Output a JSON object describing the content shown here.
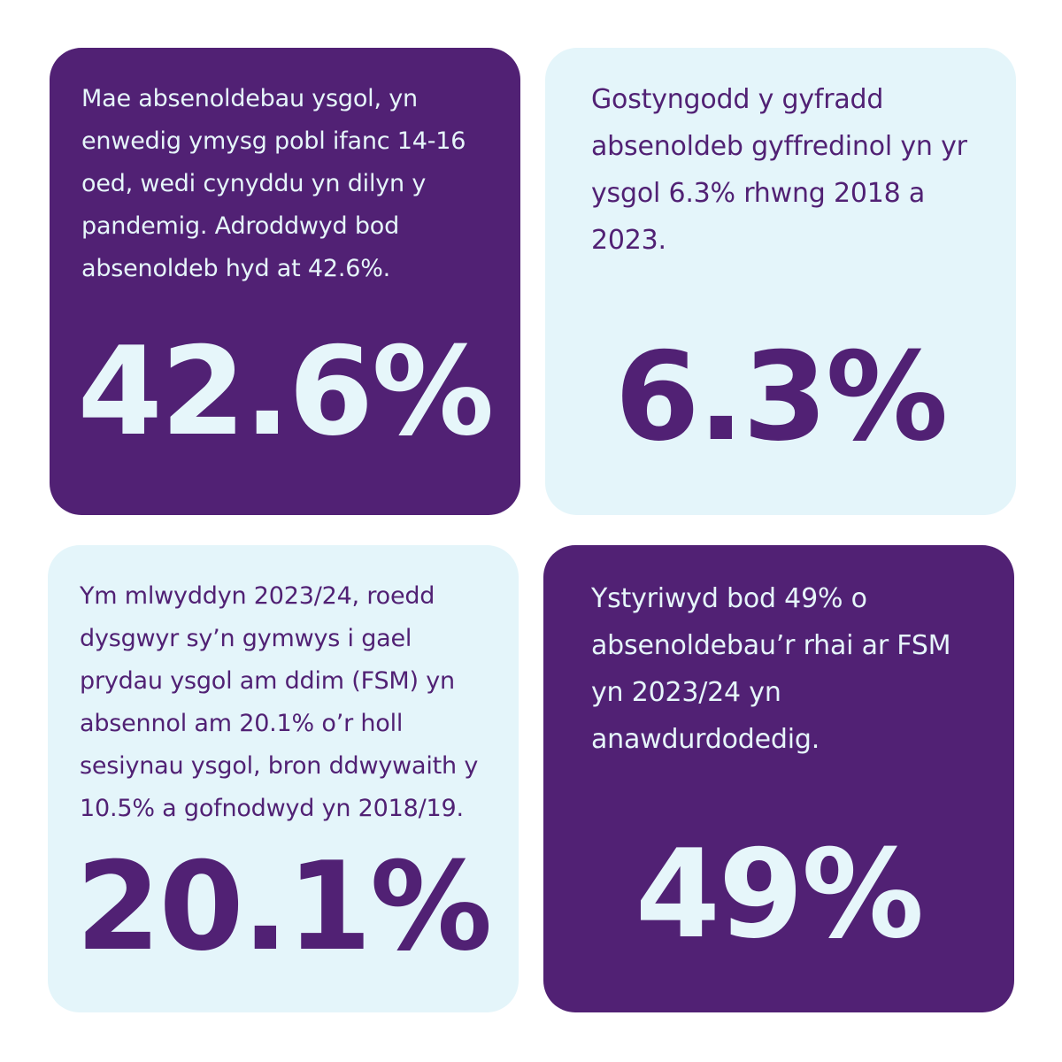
{
  "cards": [
    {
      "text": "Mae absenoldebau ysgol, yn\nenwedig ymysg pobl ifanc 14-16\noed, wedi cynyddu yn dilyn y\npandemig. Adroddwyd bod\nabsenoldeb hyd at 42.6%.",
      "figure": "42.6%",
      "theme": "dark"
    },
    {
      "text": "Gostyngodd y gyfradd\nabsenoldeb gyffredinol yn yr\nysgol 6.3% rhwng 2018 a\n2023.",
      "figure": "6.3%",
      "theme": "light"
    },
    {
      "text": "Ym mlwyddyn 2023/24, roedd\ndysgwyr sy’n gymwys i gael\nprydau ysgol am ddim (FSM) yn\nabsennol am 20.1% o’r holl\nsesiynau ysgol, bron ddwywaith y\n10.5% a gofnodwyd yn 2018/19.",
      "figure": "20.1%",
      "theme": "light"
    },
    {
      "text": "Ystyriwyd bod 49% o\nabsenoldebau’r rhai ar FSM\nyn 2023/24 yn\nanawdurdodedig.",
      "figure": "49%",
      "theme": "dark"
    }
  ],
  "colors": {
    "purple": "#512174",
    "light_blue": "#e4f5fa",
    "background": "#ffffff"
  }
}
